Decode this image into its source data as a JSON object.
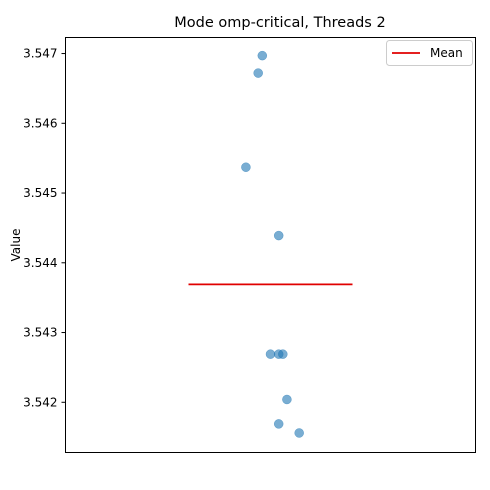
{
  "chart_data": {
    "type": "scatter",
    "title": "Mode omp-critical, Threads 2",
    "xlabel": "",
    "ylabel": "Value",
    "ylim": [
      3.54128,
      3.54723
    ],
    "yticks": [
      3.542,
      3.543,
      3.544,
      3.545,
      3.546,
      3.547
    ],
    "ytick_labels": [
      "3.542",
      "3.543",
      "3.544",
      "3.545",
      "3.546",
      "3.547"
    ],
    "xlim": [
      -1,
      1
    ],
    "x_ticks_visible": false,
    "grid": false,
    "legend_position": "top-right",
    "series": [
      {
        "kind": "points",
        "color": "#1f77b4",
        "x": [
          -0.04,
          -0.06,
          -0.12,
          0.04,
          0.0,
          0.04,
          0.06,
          0.08,
          0.04,
          0.14
        ],
        "y": [
          3.54697,
          3.54672,
          3.54537,
          3.54439,
          3.54269,
          3.54269,
          3.54269,
          3.54204,
          3.54169,
          3.54156
        ]
      },
      {
        "kind": "mean-line",
        "name": "Mean",
        "color": "#e00000",
        "y": 3.54369,
        "x_range": [
          -1,
          1
        ]
      }
    ],
    "legend": [
      "Mean"
    ]
  }
}
